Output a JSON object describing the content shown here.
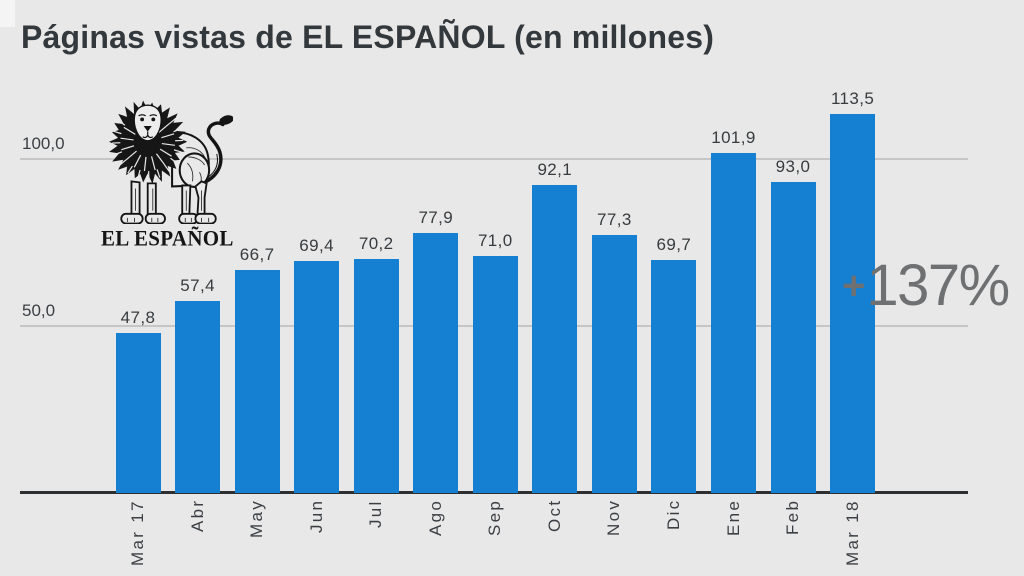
{
  "title": "Páginas vistas de EL ESPAÑOL (en millones)",
  "logo": {
    "name": "el-espanol-lion-logo",
    "text": "EL ESPAÑOL"
  },
  "annotation": {
    "plus": "+",
    "value": "137%"
  },
  "chart_data": {
    "type": "bar",
    "title": "Páginas vistas de EL ESPAÑOL (en millones)",
    "categories": [
      "Mar 17",
      "Abr",
      "May",
      "Jun",
      "Jul",
      "Ago",
      "Sep",
      "Oct",
      "Nov",
      "Dic",
      "Ene",
      "Feb",
      "Mar 18"
    ],
    "values": [
      47.8,
      57.4,
      66.7,
      69.4,
      70.2,
      77.9,
      71.0,
      92.1,
      77.3,
      69.7,
      101.9,
      93.0,
      113.5
    ],
    "value_labels": [
      "47,8",
      "57,4",
      "66,7",
      "69,4",
      "70,2",
      "77,9",
      "71,0",
      "92,1",
      "77,3",
      "69,7",
      "101,9",
      "93,0",
      "113,5"
    ],
    "xlabel": "",
    "ylabel": "",
    "ylim": [
      0,
      118
    ],
    "yticks": [
      {
        "value": 50,
        "label": "50,0"
      },
      {
        "value": 100,
        "label": "100,0"
      }
    ],
    "grid": "horizontal gridlines at yticks only",
    "legend": "none",
    "bar_color": "#157fd2",
    "annotation": "+137% (growth Mar 17 to Mar 18)"
  },
  "colors": {
    "background": "#e8e8e8",
    "bar": "#157fd2",
    "title_text": "#33383c",
    "label_text": "#3b3f43",
    "gridline": "#c6c6c6",
    "axis": "#2d2f31",
    "annotation_text": "#6f7071",
    "logo_black": "#141414"
  }
}
